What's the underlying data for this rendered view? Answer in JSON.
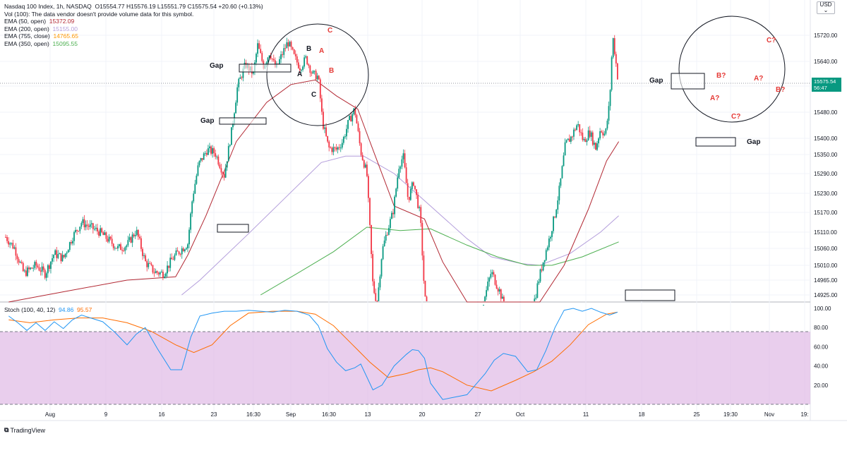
{
  "legend": {
    "title": "Nasdaq 100 Index, 1h, NASDAQ",
    "ohlc": "O15554.77 H15576.19 L15551.79 C15575.54 +20.60 (+0.13%)",
    "vol": "Vol (100): The data vendor doesn't provide volume data for this symbol.",
    "ema50_label": "EMA (50, open)",
    "ema50_value": "15372.09",
    "ema200_label": "EMA (200, open)",
    "ema200_value": "15155.00",
    "ema755_label": "EMA (755, close)",
    "ema755_value": "14765.65",
    "ema350_label": "EMA (350, open)",
    "ema350_value": "15095.55"
  },
  "stoch_legend": {
    "label": "Stoch (100, 40, 12)",
    "k": "94.86",
    "d": "95.57"
  },
  "currency": "USD",
  "last_price": {
    "value": "15575.54",
    "countdown": "56:47"
  },
  "brand": "TradingView",
  "colors": {
    "up": "#089981",
    "down": "#f23645",
    "ema50": "#b22833",
    "ema200": "#b39ddb",
    "ema350": "#4caf50",
    "stoch_k": "#2196f3",
    "stoch_d": "#ff6d00",
    "band": "#e1bee7"
  },
  "chart_data": {
    "type": "candlestick",
    "price_axis": {
      "ticks": [
        "15720.00",
        "15640.00",
        "15560.00",
        "15480.00",
        "15400.00",
        "15350.00",
        "15290.00",
        "15230.00",
        "15170.00",
        "15110.00",
        "15060.00",
        "15010.00",
        "14965.00",
        "14925.00"
      ]
    },
    "stoch_axis": {
      "ticks": [
        "100.00",
        "80.00",
        "60.00",
        "40.00",
        "20.00"
      ],
      "band": [
        20,
        80
      ]
    },
    "time_axis": {
      "ticks": [
        "Aug",
        "9",
        "16",
        "23",
        "16:30",
        "Sep",
        "16:30",
        "13",
        "20",
        "27",
        "Oct",
        "11",
        "18",
        "25",
        "19:30",
        "Nov",
        "19:"
      ]
    },
    "price_series": [
      [
        0,
        15095
      ],
      [
        15,
        15060
      ],
      [
        30,
        14985
      ],
      [
        50,
        15010
      ],
      [
        65,
        14985
      ],
      [
        80,
        15045
      ],
      [
        95,
        15030
      ],
      [
        110,
        15095
      ],
      [
        125,
        15140
      ],
      [
        140,
        15125
      ],
      [
        155,
        15110
      ],
      [
        170,
        15085
      ],
      [
        185,
        15060
      ],
      [
        200,
        15070
      ],
      [
        215,
        15115
      ],
      [
        230,
        15020
      ],
      [
        245,
        14990
      ],
      [
        260,
        14985
      ],
      [
        275,
        15030
      ],
      [
        288,
        15055
      ],
      [
        300,
        15075
      ],
      [
        308,
        15220
      ],
      [
        318,
        15320
      ],
      [
        332,
        15365
      ],
      [
        345,
        15355
      ],
      [
        360,
        15285
      ],
      [
        372,
        15420
      ],
      [
        382,
        15560
      ],
      [
        395,
        15630
      ],
      [
        408,
        15600
      ],
      [
        415,
        15690
      ],
      [
        425,
        15625
      ],
      [
        435,
        15670
      ],
      [
        445,
        15615
      ],
      [
        455,
        15660
      ],
      [
        465,
        15700
      ],
      [
        475,
        15655
      ],
      [
        485,
        15620
      ],
      [
        495,
        15650
      ],
      [
        505,
        15600
      ],
      [
        515,
        15590
      ],
      [
        522,
        15450
      ],
      [
        532,
        15370
      ],
      [
        545,
        15365
      ],
      [
        555,
        15390
      ],
      [
        565,
        15450
      ],
      [
        575,
        15490
      ],
      [
        585,
        15360
      ],
      [
        595,
        15290
      ],
      [
        605,
        14950
      ],
      [
        612,
        14900
      ],
      [
        620,
        15050
      ],
      [
        628,
        15110
      ],
      [
        638,
        15170
      ],
      [
        648,
        15315
      ],
      [
        655,
        15345
      ],
      [
        663,
        15210
      ],
      [
        672,
        15265
      ],
      [
        683,
        15160
      ],
      [
        690,
        14925
      ],
      [
        700,
        14800
      ],
      [
        720,
        14700
      ],
      [
        750,
        14650
      ],
      [
        800,
        14990
      ],
      [
        815,
        14930
      ],
      [
        830,
        14830
      ],
      [
        860,
        14820
      ],
      [
        878,
        14965
      ],
      [
        886,
        15025
      ],
      [
        895,
        15085
      ],
      [
        905,
        15165
      ],
      [
        913,
        15250
      ],
      [
        922,
        15380
      ],
      [
        932,
        15405
      ],
      [
        942,
        15445
      ],
      [
        952,
        15390
      ],
      [
        962,
        15420
      ],
      [
        972,
        15370
      ],
      [
        980,
        15430
      ],
      [
        988,
        15410
      ],
      [
        995,
        15510
      ],
      [
        1000,
        15720
      ],
      [
        1004,
        15660
      ],
      [
        1009,
        15575
      ]
    ],
    "ema50": [
      [
        5,
        14900
      ],
      [
        100,
        14935
      ],
      [
        200,
        14965
      ],
      [
        280,
        14975
      ],
      [
        300,
        15040
      ],
      [
        330,
        15160
      ],
      [
        380,
        15390
      ],
      [
        430,
        15510
      ],
      [
        470,
        15565
      ],
      [
        510,
        15580
      ],
      [
        545,
        15530
      ],
      [
        580,
        15490
      ],
      [
        600,
        15390
      ],
      [
        640,
        15190
      ],
      [
        690,
        15150
      ],
      [
        720,
        15020
      ],
      [
        760,
        14880
      ],
      [
        820,
        14820
      ],
      [
        880,
        14870
      ],
      [
        920,
        15010
      ],
      [
        960,
        15180
      ],
      [
        990,
        15330
      ],
      [
        1010,
        15390
      ]
    ],
    "ema200": [
      [
        290,
        14925
      ],
      [
        320,
        14965
      ],
      [
        400,
        15105
      ],
      [
        460,
        15215
      ],
      [
        520,
        15325
      ],
      [
        560,
        15345
      ],
      [
        590,
        15345
      ],
      [
        640,
        15290
      ],
      [
        700,
        15190
      ],
      [
        760,
        15090
      ],
      [
        800,
        15035
      ],
      [
        850,
        15015
      ],
      [
        880,
        15010
      ],
      [
        930,
        15045
      ],
      [
        980,
        15110
      ],
      [
        1010,
        15160
      ]
    ],
    "ema350": [
      [
        420,
        14925
      ],
      [
        480,
        14985
      ],
      [
        540,
        15050
      ],
      [
        595,
        15125
      ],
      [
        650,
        15115
      ],
      [
        700,
        15120
      ],
      [
        760,
        15070
      ],
      [
        810,
        15035
      ],
      [
        860,
        15010
      ],
      [
        900,
        15010
      ],
      [
        950,
        15035
      ],
      [
        1010,
        15080
      ]
    ],
    "stoch_k": [
      [
        5,
        92
      ],
      [
        20,
        85
      ],
      [
        35,
        77
      ],
      [
        50,
        85
      ],
      [
        65,
        77
      ],
      [
        80,
        86
      ],
      [
        95,
        79
      ],
      [
        110,
        88
      ],
      [
        125,
        93
      ],
      [
        140,
        90
      ],
      [
        160,
        86
      ],
      [
        180,
        75
      ],
      [
        200,
        62
      ],
      [
        215,
        73
      ],
      [
        230,
        80
      ],
      [
        250,
        58
      ],
      [
        272,
        36
      ],
      [
        290,
        36
      ],
      [
        305,
        70
      ],
      [
        320,
        92
      ],
      [
        340,
        95
      ],
      [
        360,
        97
      ],
      [
        380,
        97
      ],
      [
        400,
        98
      ],
      [
        420,
        97
      ],
      [
        440,
        96
      ],
      [
        460,
        98
      ],
      [
        480,
        97
      ],
      [
        500,
        93
      ],
      [
        515,
        82
      ],
      [
        530,
        58
      ],
      [
        545,
        44
      ],
      [
        560,
        35
      ],
      [
        575,
        38
      ],
      [
        585,
        42
      ],
      [
        605,
        15
      ],
      [
        620,
        20
      ],
      [
        640,
        40
      ],
      [
        660,
        52
      ],
      [
        670,
        57
      ],
      [
        680,
        56
      ],
      [
        690,
        48
      ],
      [
        700,
        22
      ],
      [
        720,
        5
      ],
      [
        760,
        10
      ],
      [
        790,
        32
      ],
      [
        805,
        46
      ],
      [
        820,
        53
      ],
      [
        840,
        50
      ],
      [
        860,
        34
      ],
      [
        875,
        36
      ],
      [
        890,
        56
      ],
      [
        905,
        80
      ],
      [
        920,
        98
      ],
      [
        935,
        100
      ],
      [
        950,
        97
      ],
      [
        965,
        100
      ],
      [
        980,
        96
      ],
      [
        995,
        93
      ],
      [
        1008,
        96
      ]
    ],
    "stoch_d": [
      [
        5,
        88
      ],
      [
        40,
        85
      ],
      [
        80,
        88
      ],
      [
        120,
        90
      ],
      [
        160,
        90
      ],
      [
        200,
        85
      ],
      [
        240,
        76
      ],
      [
        280,
        62
      ],
      [
        310,
        54
      ],
      [
        340,
        62
      ],
      [
        370,
        82
      ],
      [
        400,
        95
      ],
      [
        440,
        97
      ],
      [
        480,
        97
      ],
      [
        510,
        94
      ],
      [
        540,
        82
      ],
      [
        570,
        63
      ],
      [
        600,
        44
      ],
      [
        630,
        28
      ],
      [
        660,
        32
      ],
      [
        680,
        36
      ],
      [
        700,
        38
      ],
      [
        720,
        34
      ],
      [
        760,
        20
      ],
      [
        800,
        14
      ],
      [
        840,
        25
      ],
      [
        870,
        34
      ],
      [
        900,
        45
      ],
      [
        930,
        62
      ],
      [
        960,
        83
      ],
      [
        990,
        94
      ],
      [
        1008,
        96
      ]
    ]
  },
  "annotations": {
    "gap": "Gap",
    "wave_labels": [
      {
        "t": "A",
        "color": "black"
      },
      {
        "t": "B",
        "color": "black"
      },
      {
        "t": "C",
        "color": "black"
      },
      {
        "t": "A",
        "color": "red"
      },
      {
        "t": "B",
        "color": "red"
      },
      {
        "t": "C",
        "color": "red"
      },
      {
        "t": "A?",
        "color": "red"
      },
      {
        "t": "B?",
        "color": "red"
      },
      {
        "t": "C?",
        "color": "red"
      },
      {
        "t": "A?",
        "color": "red"
      },
      {
        "t": "B?",
        "color": "red"
      },
      {
        "t": "C?",
        "color": "red"
      }
    ]
  }
}
